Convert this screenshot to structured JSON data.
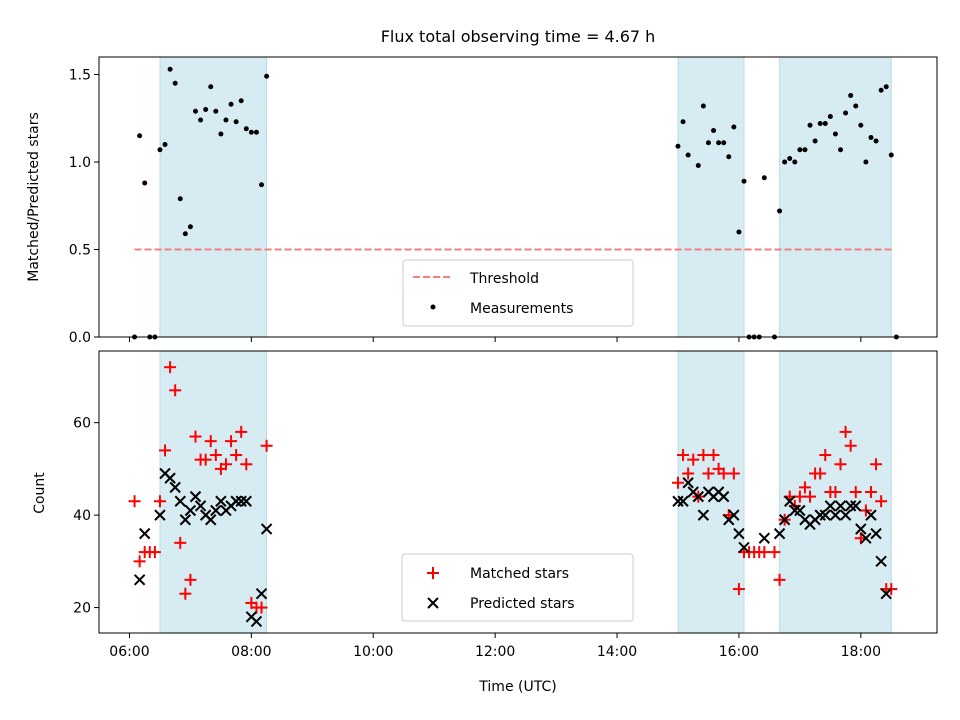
{
  "chart_data": [
    {
      "type": "scatter",
      "title": "Flux total observing time = 4.67 h",
      "ylabel": "Matched/Predicted stars",
      "xlabel": "",
      "ylim": [
        0,
        1.6
      ],
      "xlim": [
        "05:30",
        "19:15"
      ],
      "yticks": [
        "0.0",
        "0.5",
        "1.0",
        "1.5"
      ],
      "shaded_time_ranges": [
        [
          "06:30",
          "08:15"
        ],
        [
          "15:00",
          "16:05"
        ],
        [
          "16:40",
          "18:30"
        ]
      ],
      "threshold": {
        "name": "Threshold",
        "y": 0.5,
        "x_range": [
          "06:05",
          "18:30"
        ],
        "color": "#f08080",
        "style": "dashed"
      },
      "series": [
        {
          "name": "Measurements",
          "color": "#000000",
          "points": [
            [
              "06:05",
              0.0
            ],
            [
              "06:10",
              1.15
            ],
            [
              "06:15",
              0.88
            ],
            [
              "06:20",
              0.0
            ],
            [
              "06:25",
              0.0
            ],
            [
              "06:30",
              1.07
            ],
            [
              "06:35",
              1.1
            ],
            [
              "06:40",
              1.53
            ],
            [
              "06:45",
              1.45
            ],
            [
              "06:50",
              0.79
            ],
            [
              "06:55",
              0.59
            ],
            [
              "07:00",
              0.63
            ],
            [
              "07:05",
              1.29
            ],
            [
              "07:10",
              1.24
            ],
            [
              "07:15",
              1.3
            ],
            [
              "07:20",
              1.43
            ],
            [
              "07:25",
              1.29
            ],
            [
              "07:30",
              1.16
            ],
            [
              "07:35",
              1.24
            ],
            [
              "07:40",
              1.33
            ],
            [
              "07:45",
              1.23
            ],
            [
              "07:50",
              1.35
            ],
            [
              "07:55",
              1.19
            ],
            [
              "08:00",
              1.17
            ],
            [
              "08:05",
              1.17
            ],
            [
              "08:10",
              0.87
            ],
            [
              "08:15",
              1.49
            ],
            [
              "15:00",
              1.09
            ],
            [
              "15:05",
              1.23
            ],
            [
              "15:10",
              1.04
            ],
            [
              "15:20",
              0.98
            ],
            [
              "15:25",
              1.32
            ],
            [
              "15:30",
              1.11
            ],
            [
              "15:35",
              1.18
            ],
            [
              "15:40",
              1.11
            ],
            [
              "15:45",
              1.11
            ],
            [
              "15:50",
              1.03
            ],
            [
              "15:55",
              1.2
            ],
            [
              "16:00",
              0.6
            ],
            [
              "16:05",
              0.89
            ],
            [
              "16:10",
              0.0
            ],
            [
              "16:15",
              0.0
            ],
            [
              "16:20",
              0.0
            ],
            [
              "16:25",
              0.91
            ],
            [
              "16:35",
              0.0
            ],
            [
              "16:40",
              0.72
            ],
            [
              "16:45",
              1.0
            ],
            [
              "16:50",
              1.02
            ],
            [
              "16:55",
              1.0
            ],
            [
              "17:00",
              1.07
            ],
            [
              "17:05",
              1.07
            ],
            [
              "17:10",
              1.21
            ],
            [
              "17:15",
              1.12
            ],
            [
              "17:20",
              1.22
            ],
            [
              "17:25",
              1.22
            ],
            [
              "17:30",
              1.26
            ],
            [
              "17:35",
              1.16
            ],
            [
              "17:40",
              1.07
            ],
            [
              "17:45",
              1.28
            ],
            [
              "17:50",
              1.38
            ],
            [
              "17:55",
              1.32
            ],
            [
              "18:00",
              1.21
            ],
            [
              "18:05",
              1.0
            ],
            [
              "18:10",
              1.14
            ],
            [
              "18:15",
              1.12
            ],
            [
              "18:20",
              1.41
            ],
            [
              "18:25",
              1.43
            ],
            [
              "18:30",
              1.04
            ],
            [
              "18:35",
              0.0
            ]
          ]
        }
      ],
      "legend": {
        "entries": [
          "Threshold",
          "Measurements"
        ],
        "placement": "lower-center"
      }
    },
    {
      "type": "scatter",
      "title": "",
      "xlabel": "Time (UTC)",
      "ylabel": "Count",
      "ylim": [
        14.5,
        75.5
      ],
      "xlim": [
        "05:30",
        "19:15"
      ],
      "yticks": [
        "20",
        "40",
        "60"
      ],
      "xticks": [
        "06:00",
        "08:00",
        "10:00",
        "12:00",
        "14:00",
        "16:00",
        "18:00"
      ],
      "shaded_time_ranges": [
        [
          "06:30",
          "08:15"
        ],
        [
          "15:00",
          "16:05"
        ],
        [
          "16:40",
          "18:30"
        ]
      ],
      "series": [
        {
          "name": "Matched stars",
          "marker": "plus",
          "color": "#ff0000",
          "points": [
            [
              "06:05",
              43
            ],
            [
              "06:10",
              30
            ],
            [
              "06:15",
              32
            ],
            [
              "06:20",
              32
            ],
            [
              "06:25",
              32
            ],
            [
              "06:30",
              43
            ],
            [
              "06:35",
              54
            ],
            [
              "06:40",
              72
            ],
            [
              "06:45",
              67
            ],
            [
              "06:50",
              34
            ],
            [
              "06:55",
              23
            ],
            [
              "07:00",
              26
            ],
            [
              "07:05",
              57
            ],
            [
              "07:10",
              52
            ],
            [
              "07:15",
              52
            ],
            [
              "07:20",
              56
            ],
            [
              "07:25",
              53
            ],
            [
              "07:30",
              50
            ],
            [
              "07:35",
              51
            ],
            [
              "07:40",
              56
            ],
            [
              "07:45",
              53
            ],
            [
              "07:50",
              58
            ],
            [
              "07:55",
              51
            ],
            [
              "08:00",
              21
            ],
            [
              "08:05",
              20
            ],
            [
              "08:10",
              20
            ],
            [
              "08:15",
              55
            ],
            [
              "15:00",
              47
            ],
            [
              "15:05",
              53
            ],
            [
              "15:10",
              49
            ],
            [
              "15:15",
              52
            ],
            [
              "15:20",
              44
            ],
            [
              "15:25",
              53
            ],
            [
              "15:30",
              49
            ],
            [
              "15:35",
              53
            ],
            [
              "15:40",
              50
            ],
            [
              "15:45",
              49
            ],
            [
              "15:50",
              40
            ],
            [
              "15:55",
              49
            ],
            [
              "16:00",
              24
            ],
            [
              "16:05",
              32
            ],
            [
              "16:10",
              32
            ],
            [
              "16:15",
              32
            ],
            [
              "16:20",
              32
            ],
            [
              "16:25",
              32
            ],
            [
              "16:35",
              32
            ],
            [
              "16:40",
              26
            ],
            [
              "16:45",
              39
            ],
            [
              "16:50",
              44
            ],
            [
              "16:55",
              42
            ],
            [
              "17:00",
              44
            ],
            [
              "17:05",
              46
            ],
            [
              "17:10",
              44
            ],
            [
              "17:15",
              49
            ],
            [
              "17:20",
              49
            ],
            [
              "17:25",
              53
            ],
            [
              "17:30",
              45
            ],
            [
              "17:35",
              45
            ],
            [
              "17:40",
              51
            ],
            [
              "17:45",
              58
            ],
            [
              "17:50",
              55
            ],
            [
              "17:55",
              45
            ],
            [
              "18:00",
              35
            ],
            [
              "18:05",
              41
            ],
            [
              "18:10",
              45
            ],
            [
              "18:15",
              51
            ],
            [
              "18:20",
              43
            ],
            [
              "18:25",
              24
            ],
            [
              "18:30",
              24
            ]
          ]
        },
        {
          "name": "Predicted stars",
          "marker": "x",
          "color": "#000000",
          "points": [
            [
              "06:10",
              26
            ],
            [
              "06:15",
              36
            ],
            [
              "06:30",
              40
            ],
            [
              "06:35",
              49
            ],
            [
              "06:40",
              48
            ],
            [
              "06:45",
              46
            ],
            [
              "06:50",
              43
            ],
            [
              "06:55",
              39
            ],
            [
              "07:00",
              41
            ],
            [
              "07:05",
              44
            ],
            [
              "07:10",
              42
            ],
            [
              "07:15",
              40
            ],
            [
              "07:20",
              39
            ],
            [
              "07:25",
              41
            ],
            [
              "07:30",
              43
            ],
            [
              "07:35",
              41
            ],
            [
              "07:40",
              42
            ],
            [
              "07:45",
              43
            ],
            [
              "07:50",
              43
            ],
            [
              "07:55",
              43
            ],
            [
              "08:00",
              18
            ],
            [
              "08:05",
              17
            ],
            [
              "08:10",
              23
            ],
            [
              "08:15",
              37
            ],
            [
              "15:00",
              43
            ],
            [
              "15:05",
              43
            ],
            [
              "15:10",
              47
            ],
            [
              "15:15",
              45
            ],
            [
              "15:20",
              44
            ],
            [
              "15:25",
              40
            ],
            [
              "15:30",
              45
            ],
            [
              "15:35",
              44
            ],
            [
              "15:40",
              45
            ],
            [
              "15:45",
              44
            ],
            [
              "15:50",
              39
            ],
            [
              "15:55",
              40
            ],
            [
              "16:00",
              36
            ],
            [
              "16:05",
              33
            ],
            [
              "16:25",
              35
            ],
            [
              "16:40",
              36
            ],
            [
              "16:45",
              39
            ],
            [
              "16:50",
              43
            ],
            [
              "16:55",
              41
            ],
            [
              "17:00",
              41
            ],
            [
              "17:05",
              39
            ],
            [
              "17:10",
              38
            ],
            [
              "17:15",
              39
            ],
            [
              "17:20",
              40
            ],
            [
              "17:25",
              40
            ],
            [
              "17:30",
              42
            ],
            [
              "17:35",
              40
            ],
            [
              "17:40",
              42
            ],
            [
              "17:45",
              40
            ],
            [
              "17:50",
              42
            ],
            [
              "17:55",
              42
            ],
            [
              "18:00",
              37
            ],
            [
              "18:05",
              35
            ],
            [
              "18:10",
              40
            ],
            [
              "18:15",
              36
            ],
            [
              "18:20",
              30
            ],
            [
              "18:25",
              23
            ]
          ]
        }
      ],
      "legend": {
        "entries": [
          "Matched stars",
          "Predicted stars"
        ],
        "placement": "lower-center"
      }
    }
  ]
}
